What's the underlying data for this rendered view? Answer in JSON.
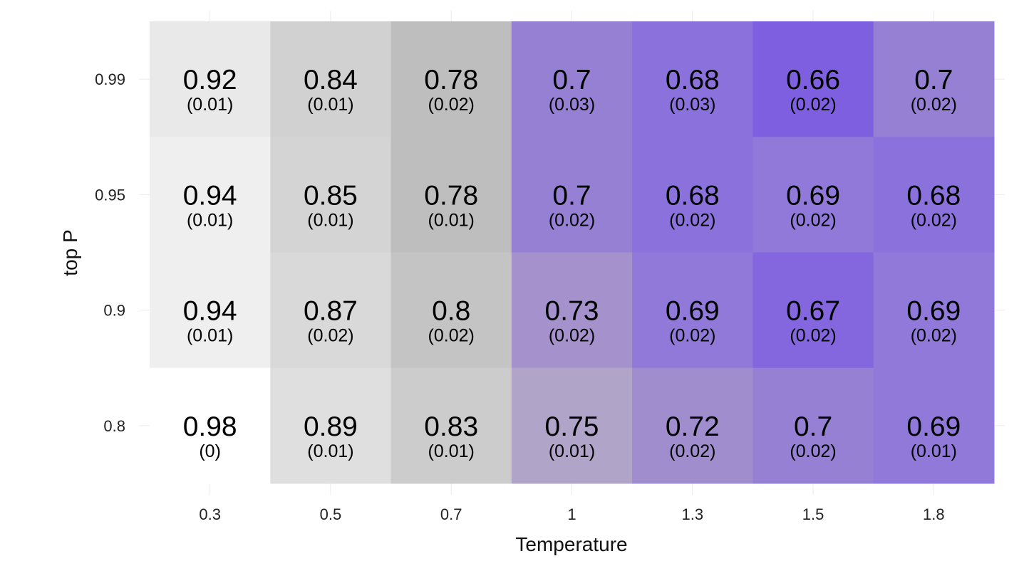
{
  "chart_data": {
    "type": "heatmap",
    "xlabel": "Temperature",
    "ylabel": "top P",
    "x_categories": [
      "0.3",
      "0.5",
      "0.7",
      "1",
      "1.3",
      "1.5",
      "1.8"
    ],
    "y_categories": [
      "0.8",
      "0.9",
      "0.95",
      "0.99"
    ],
    "grid": true,
    "cells": [
      {
        "x": "0.3",
        "y": "0.99",
        "value": "0.92",
        "sd": "(0.01)",
        "color": "#e9e9e9"
      },
      {
        "x": "0.5",
        "y": "0.99",
        "value": "0.84",
        "sd": "(0.01)",
        "color": "#d1d1d1"
      },
      {
        "x": "0.7",
        "y": "0.99",
        "value": "0.78",
        "sd": "(0.02)",
        "color": "#bebebe"
      },
      {
        "x": "1",
        "y": "0.99",
        "value": "0.7",
        "sd": "(0.03)",
        "color": "#9580d4"
      },
      {
        "x": "1.3",
        "y": "0.99",
        "value": "0.68",
        "sd": "(0.03)",
        "color": "#8a71dc"
      },
      {
        "x": "1.5",
        "y": "0.99",
        "value": "0.66",
        "sd": "(0.02)",
        "color": "#7d5fe0"
      },
      {
        "x": "1.8",
        "y": "0.99",
        "value": "0.7",
        "sd": "(0.02)",
        "color": "#9580d4"
      },
      {
        "x": "0.3",
        "y": "0.95",
        "value": "0.94",
        "sd": "(0.01)",
        "color": "#efefef"
      },
      {
        "x": "0.5",
        "y": "0.95",
        "value": "0.85",
        "sd": "(0.01)",
        "color": "#d4d4d4"
      },
      {
        "x": "0.7",
        "y": "0.95",
        "value": "0.78",
        "sd": "(0.01)",
        "color": "#bebebe"
      },
      {
        "x": "1",
        "y": "0.95",
        "value": "0.7",
        "sd": "(0.02)",
        "color": "#9580d4"
      },
      {
        "x": "1.3",
        "y": "0.95",
        "value": "0.68",
        "sd": "(0.02)",
        "color": "#8a71dc"
      },
      {
        "x": "1.5",
        "y": "0.95",
        "value": "0.69",
        "sd": "(0.02)",
        "color": "#9079d8"
      },
      {
        "x": "1.8",
        "y": "0.95",
        "value": "0.68",
        "sd": "(0.02)",
        "color": "#8a71dc"
      },
      {
        "x": "0.3",
        "y": "0.9",
        "value": "0.94",
        "sd": "(0.01)",
        "color": "#efefef"
      },
      {
        "x": "0.5",
        "y": "0.9",
        "value": "0.87",
        "sd": "(0.02)",
        "color": "#d9d9d9"
      },
      {
        "x": "0.7",
        "y": "0.9",
        "value": "0.8",
        "sd": "(0.02)",
        "color": "#c4c4c4"
      },
      {
        "x": "1",
        "y": "0.9",
        "value": "0.73",
        "sd": "(0.02)",
        "color": "#a592cc"
      },
      {
        "x": "1.3",
        "y": "0.9",
        "value": "0.69",
        "sd": "(0.02)",
        "color": "#9079d8"
      },
      {
        "x": "1.5",
        "y": "0.9",
        "value": "0.67",
        "sd": "(0.02)",
        "color": "#8466de"
      },
      {
        "x": "1.8",
        "y": "0.9",
        "value": "0.69",
        "sd": "(0.02)",
        "color": "#9079d8"
      },
      {
        "x": "0.3",
        "y": "0.8",
        "value": "0.98",
        "sd": "(0)",
        "color": "#ffffff"
      },
      {
        "x": "0.5",
        "y": "0.8",
        "value": "0.89",
        "sd": "(0.01)",
        "color": "#dfdfdf"
      },
      {
        "x": "0.7",
        "y": "0.8",
        "value": "0.83",
        "sd": "(0.01)",
        "color": "#cccccc"
      },
      {
        "x": "1",
        "y": "0.8",
        "value": "0.75",
        "sd": "(0.01)",
        "color": "#b0a5c9"
      },
      {
        "x": "1.3",
        "y": "0.8",
        "value": "0.72",
        "sd": "(0.02)",
        "color": "#a08dcd"
      },
      {
        "x": "1.5",
        "y": "0.8",
        "value": "0.7",
        "sd": "(0.02)",
        "color": "#9580d4"
      },
      {
        "x": "1.8",
        "y": "0.8",
        "value": "0.69",
        "sd": "(0.01)",
        "color": "#9079d8"
      }
    ]
  }
}
